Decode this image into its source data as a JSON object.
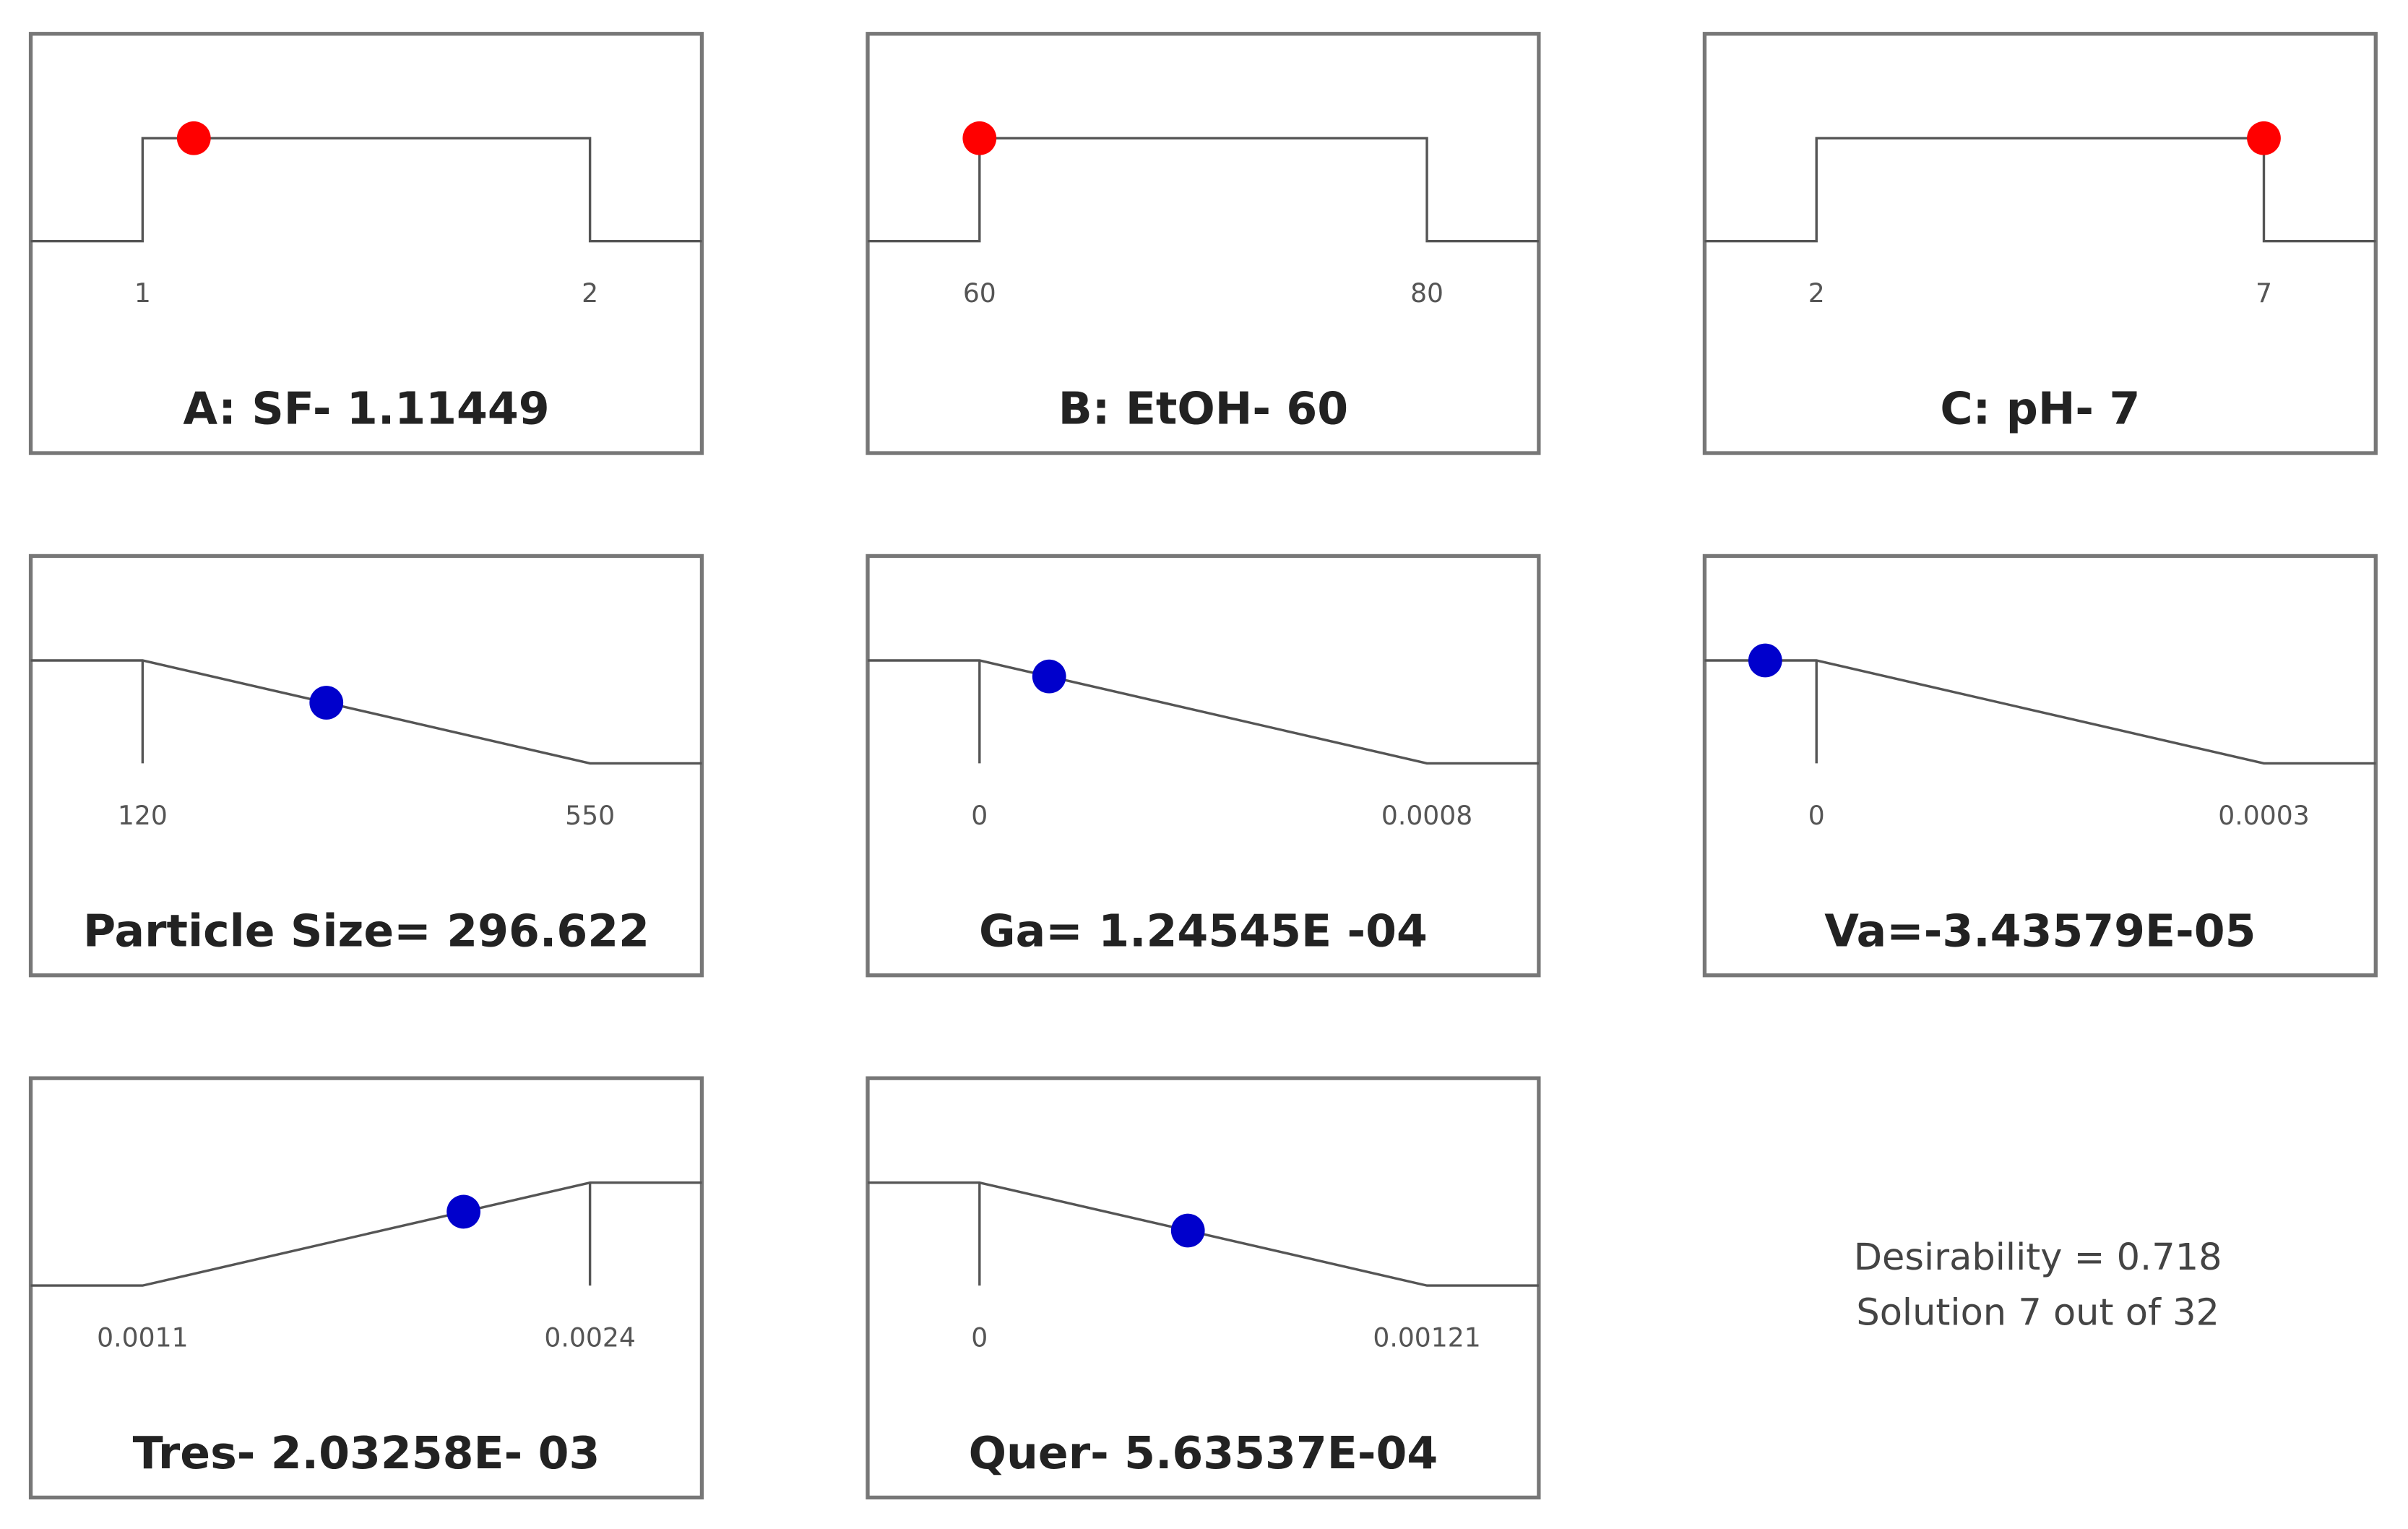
{
  "chart_data": [
    {
      "type": "ramp",
      "goal": "range",
      "title": "A: SF- 1.11449",
      "xlim": [
        0.75,
        2.25
      ],
      "xticks": [
        1,
        2
      ],
      "value": 1.11449,
      "color": "#ff0000"
    },
    {
      "type": "ramp",
      "goal": "range",
      "title": "B: EtOH- 60",
      "xlim": [
        55,
        85
      ],
      "xticks": [
        60,
        80
      ],
      "value": 60,
      "color": "#ff0000"
    },
    {
      "type": "ramp",
      "goal": "range",
      "title": "C: pH- 7",
      "xlim": [
        0.75,
        8.25
      ],
      "xticks": [
        2,
        7
      ],
      "value": 7,
      "color": "#ff0000"
    },
    {
      "type": "ramp",
      "goal": "minimize",
      "title": "Particle Size= 296.622",
      "xlim": [
        12.5,
        657.5
      ],
      "xticks": [
        120,
        550
      ],
      "value": 296.622,
      "color": "#0000cc"
    },
    {
      "type": "ramp",
      "goal": "minimize",
      "title": "Ga= 1.24545E -04",
      "xlim": [
        -0.0002,
        0.001
      ],
      "xticks": [
        0,
        0.0008
      ],
      "value": 0.000124545,
      "color": "#0000cc"
    },
    {
      "type": "ramp",
      "goal": "minimize",
      "title": "Va=-3.43579E-05",
      "xlim": [
        -7.5e-05,
        0.000375
      ],
      "xticks": [
        0,
        0.0003
      ],
      "value": -3.43579e-05,
      "color": "#0000cc"
    },
    {
      "type": "ramp",
      "goal": "maximize",
      "title": "Tres- 2.03258E- 03",
      "xlim": [
        0.000775,
        0.002725
      ],
      "xticks": [
        0.0011,
        0.0024
      ],
      "value": 0.00203258,
      "color": "#0000cc"
    },
    {
      "type": "ramp",
      "goal": "minimize",
      "title": "Quer- 5.63537E-04",
      "xlim": [
        -0.0003025,
        0.0015125
      ],
      "xticks": [
        0,
        0.00121
      ],
      "value": 0.000563537,
      "color": "#0000cc"
    }
  ],
  "summary": [
    "Desirability = 0.718",
    "Solution 7 out of 32"
  ]
}
